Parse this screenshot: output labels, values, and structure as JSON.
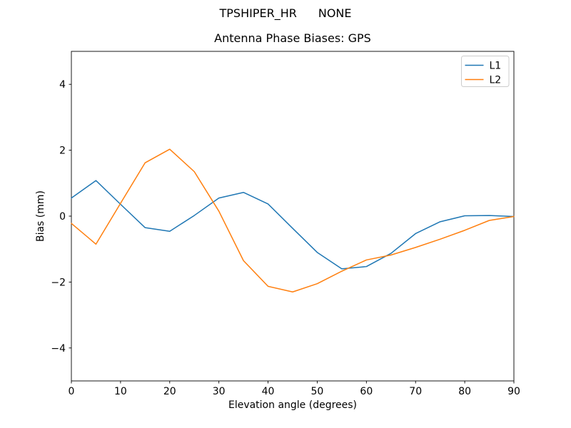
{
  "figure": {
    "suptitle_left": "TPSHIPER_HR",
    "suptitle_right": "NONE"
  },
  "chart_data": {
    "type": "line",
    "title": "Antenna Phase Biases: GPS",
    "xlabel": "Elevation angle (degrees)",
    "ylabel": "Bias (mm)",
    "xlim": [
      0,
      90
    ],
    "ylim": [
      -5,
      5
    ],
    "xticks": [
      0,
      10,
      20,
      30,
      40,
      50,
      60,
      70,
      80,
      90
    ],
    "yticks": [
      -4,
      -2,
      0,
      2,
      4
    ],
    "grid": false,
    "legend_position": "upper right",
    "x": [
      0,
      5,
      10,
      15,
      20,
      25,
      30,
      35,
      40,
      45,
      50,
      55,
      60,
      65,
      70,
      75,
      80,
      85,
      90
    ],
    "series": [
      {
        "name": "L1",
        "color": "#1f77b4",
        "values": [
          0.55,
          1.08,
          0.36,
          -0.35,
          -0.46,
          0.02,
          0.55,
          0.72,
          0.37,
          -0.37,
          -1.1,
          -1.6,
          -1.53,
          -1.13,
          -0.53,
          -0.17,
          0.01,
          0.02,
          -0.01
        ]
      },
      {
        "name": "L2",
        "color": "#ff7f0e",
        "values": [
          -0.22,
          -0.85,
          0.39,
          1.62,
          2.03,
          1.35,
          0.15,
          -1.35,
          -2.13,
          -2.3,
          -2.05,
          -1.67,
          -1.33,
          -1.18,
          -0.95,
          -0.7,
          -0.43,
          -0.13,
          -0.01
        ]
      }
    ]
  }
}
